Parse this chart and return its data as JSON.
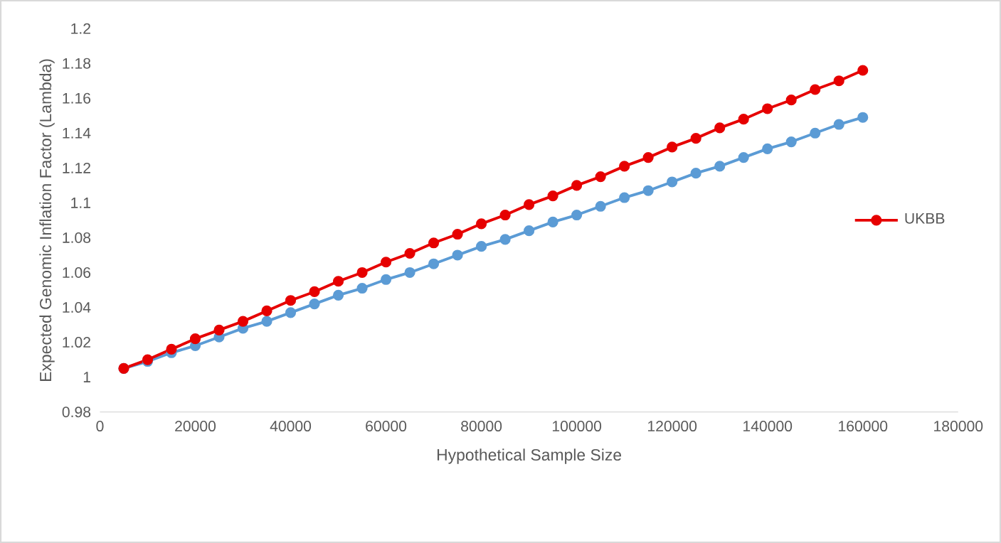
{
  "chart_data": {
    "type": "line",
    "xlabel": "Hypothetical Sample Size",
    "ylabel": "Expected Genomic Inflation Factor (Lambda)",
    "x": [
      5000,
      10000,
      15000,
      20000,
      25000,
      30000,
      35000,
      40000,
      45000,
      50000,
      55000,
      60000,
      65000,
      70000,
      75000,
      80000,
      85000,
      90000,
      95000,
      100000,
      105000,
      110000,
      115000,
      120000,
      125000,
      130000,
      135000,
      140000,
      145000,
      150000,
      155000,
      160000
    ],
    "series": [
      {
        "color": "#5b9bd5",
        "values": [
          1.005,
          1.009,
          1.014,
          1.018,
          1.023,
          1.028,
          1.032,
          1.037,
          1.042,
          1.047,
          1.051,
          1.056,
          1.06,
          1.065,
          1.07,
          1.075,
          1.079,
          1.084,
          1.089,
          1.093,
          1.098,
          1.103,
          1.107,
          1.112,
          1.117,
          1.121,
          1.126,
          1.131,
          1.135,
          1.14,
          1.145,
          1.149
        ]
      },
      {
        "name": "UKBB",
        "color": "#e60000",
        "values": [
          1.005,
          1.01,
          1.016,
          1.022,
          1.027,
          1.032,
          1.038,
          1.044,
          1.049,
          1.055,
          1.06,
          1.066,
          1.071,
          1.077,
          1.082,
          1.088,
          1.093,
          1.099,
          1.104,
          1.11,
          1.115,
          1.121,
          1.126,
          1.132,
          1.137,
          1.143,
          1.148,
          1.154,
          1.159,
          1.165,
          1.17,
          1.176
        ]
      }
    ],
    "xlim": [
      0,
      180000
    ],
    "xticks": [
      0,
      20000,
      40000,
      60000,
      80000,
      100000,
      120000,
      140000,
      160000,
      180000
    ],
    "ylim": [
      0.98,
      1.2
    ],
    "yticks": [
      0.98,
      1,
      1.02,
      1.04,
      1.06,
      1.08,
      1.1,
      1.12,
      1.14,
      1.16,
      1.18,
      1.2
    ],
    "marker": "circle",
    "line_style": "solid",
    "legend": "right"
  }
}
